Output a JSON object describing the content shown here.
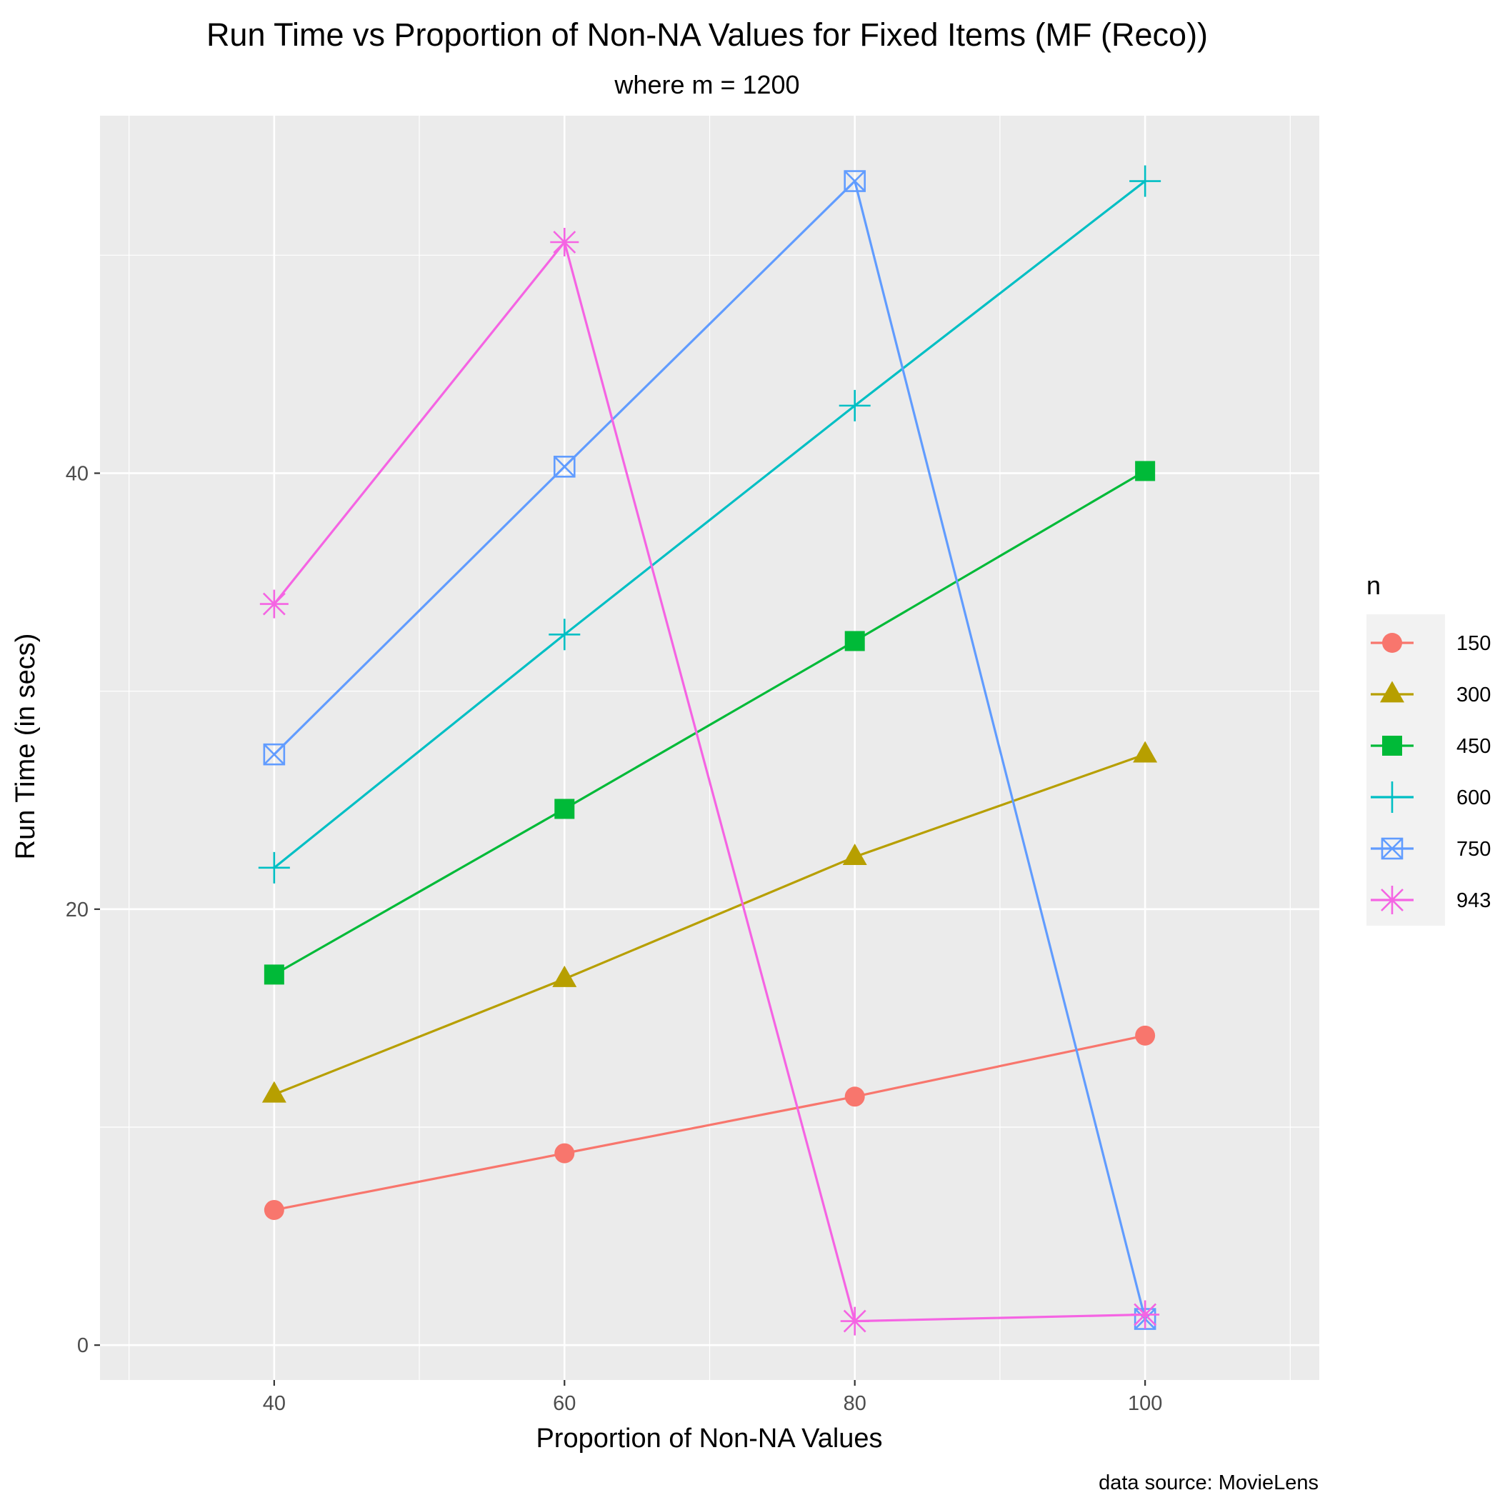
{
  "chart_data": {
    "type": "line",
    "title": "Run Time vs Proportion of Non-NA Values for Fixed Items (MF (Reco))",
    "subtitle": "where m = 1200",
    "xlabel": "Proportion of Non-NA Values",
    "ylabel": "Run Time (in secs)",
    "caption": "data source: MovieLens",
    "x": [
      40,
      60,
      80,
      100
    ],
    "x_ticks": [
      "40",
      "60",
      "80",
      "100"
    ],
    "y_ticks": [
      "0",
      "20",
      "40"
    ],
    "xlim": [
      28,
      112
    ],
    "ylim": [
      -1.6,
      56.4
    ],
    "grid": true,
    "legend": {
      "title": "n",
      "position": "right"
    },
    "series": [
      {
        "name": "150",
        "color": "#F8766D",
        "shape": "circle",
        "values": [
          6.2,
          8.8,
          11.4,
          14.2
        ]
      },
      {
        "name": "300",
        "color": "#B79F00",
        "shape": "triangle",
        "values": [
          11.5,
          16.8,
          22.4,
          27.1
        ]
      },
      {
        "name": "450",
        "color": "#00BA38",
        "shape": "square",
        "values": [
          17.0,
          24.6,
          32.3,
          40.1
        ]
      },
      {
        "name": "600",
        "color": "#00BFC4",
        "shape": "plus",
        "values": [
          21.9,
          32.6,
          43.1,
          53.4
        ]
      },
      {
        "name": "750",
        "color": "#619CFF",
        "shape": "square-cross",
        "values": [
          27.1,
          40.3,
          53.4,
          1.2
        ]
      },
      {
        "name": "943",
        "color": "#F564E3",
        "shape": "star",
        "values": [
          34.0,
          50.6,
          1.1,
          1.4
        ]
      }
    ]
  }
}
